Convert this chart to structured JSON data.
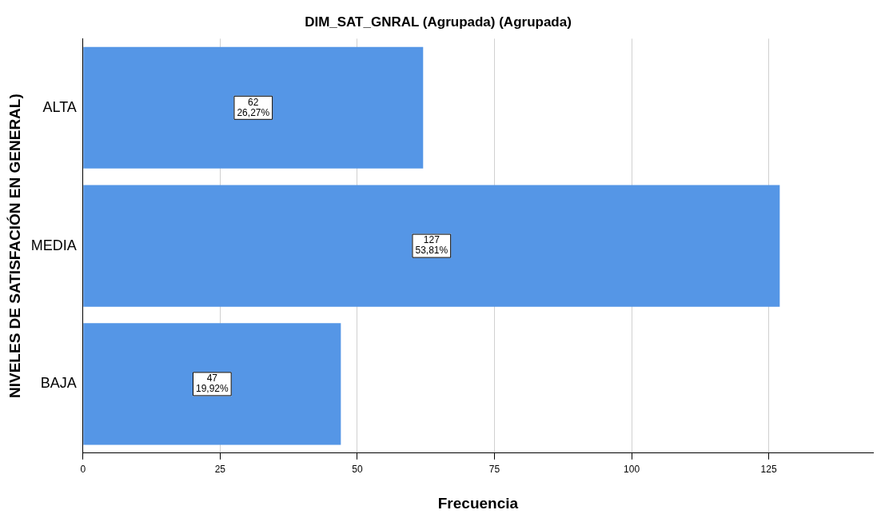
{
  "chart_data": {
    "type": "bar",
    "orientation": "horizontal",
    "title": "DIM_SAT_GNRAL (Agrupada) (Agrupada)",
    "xlabel": "Frecuencia",
    "ylabel": "NIVELES DE SATISFACIÓN EN GENERAL)",
    "categories": [
      "ALTA",
      "MEDIA",
      "BAJA"
    ],
    "values": [
      62,
      127,
      47
    ],
    "value_labels": [
      "62\n26,27%",
      "127\n53,81%",
      "47\n19,92%"
    ],
    "color": "#5596e6",
    "xlim": [
      0,
      144
    ],
    "xticks": [
      0,
      25,
      50,
      75,
      100,
      125
    ],
    "grid": "x",
    "legend": false
  }
}
